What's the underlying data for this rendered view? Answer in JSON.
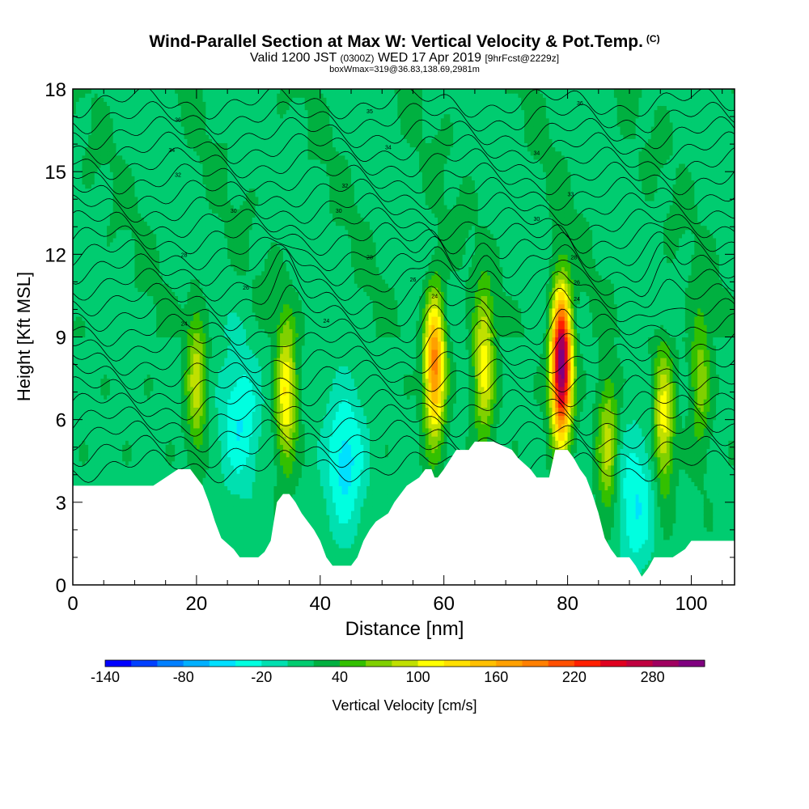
{
  "title": {
    "main": "Wind-Parallel Section at Max W: Vertical Velocity & Pot.Temp.",
    "main_suffix": "(C)",
    "valid_prefix": "Valid 1200 JST",
    "valid_z": "(0300Z)",
    "valid_date": "WED 17 Apr 2019",
    "fcst": "[9hrFcst@2229z]",
    "box": "boxWmax=319@36.83,138.69,2981m"
  },
  "chart_data": {
    "type": "heatmap",
    "xlabel": "Distance [nm]",
    "ylabel": "Height [Kft MSL]",
    "xlim": [
      0,
      107
    ],
    "ylim": [
      0,
      18
    ],
    "xticks": [
      0,
      20,
      40,
      60,
      80,
      100
    ],
    "yticks": [
      0,
      3,
      6,
      9,
      12,
      15,
      18
    ],
    "colorbar": {
      "label": "Vertical Velocity [cm/s]",
      "min": -140,
      "max": 320,
      "step": 20,
      "tick_labels": [
        -140,
        -80,
        -20,
        40,
        100,
        160,
        220,
        280
      ],
      "colors": [
        "#0000ff",
        "#0040ff",
        "#0080ff",
        "#00b0ff",
        "#00e0ff",
        "#00ffe0",
        "#00e0b0",
        "#00cc70",
        "#00b040",
        "#33c000",
        "#80d000",
        "#c0e000",
        "#ffff00",
        "#ffe000",
        "#ffc000",
        "#ffa000",
        "#ff8000",
        "#ff5000",
        "#ff2000",
        "#e00020",
        "#c00040",
        "#a00060",
        "#800080"
      ]
    },
    "terrain": [
      [
        0,
        3.6
      ],
      [
        13,
        3.6
      ],
      [
        15,
        3.9
      ],
      [
        17,
        4.2
      ],
      [
        19,
        4.2
      ],
      [
        20,
        3.9
      ],
      [
        21,
        3.6
      ],
      [
        22,
        3
      ],
      [
        23,
        2.3
      ],
      [
        24,
        1.7
      ],
      [
        26,
        1.3
      ],
      [
        27,
        1
      ],
      [
        30,
        1
      ],
      [
        31,
        1.2
      ],
      [
        32,
        1.6
      ],
      [
        33,
        3
      ],
      [
        34,
        3.3
      ],
      [
        35,
        3.3
      ],
      [
        36,
        3
      ],
      [
        37,
        2.6
      ],
      [
        38,
        2.3
      ],
      [
        39,
        2
      ],
      [
        40,
        1.6
      ],
      [
        41,
        1
      ],
      [
        42,
        0.7
      ],
      [
        45,
        0.7
      ],
      [
        46,
        1
      ],
      [
        47,
        1.6
      ],
      [
        48,
        2
      ],
      [
        49,
        2.3
      ],
      [
        51,
        2.6
      ],
      [
        52,
        3
      ],
      [
        54,
        3.6
      ],
      [
        56,
        3.9
      ],
      [
        57,
        4.2
      ],
      [
        58,
        4.2
      ],
      [
        58.5,
        3.9
      ],
      [
        59,
        3.9
      ],
      [
        60,
        4.2
      ],
      [
        62,
        4.9
      ],
      [
        64,
        4.9
      ],
      [
        65,
        5.2
      ],
      [
        68,
        5.2
      ],
      [
        71,
        4.9
      ],
      [
        72,
        4.6
      ],
      [
        74,
        4.2
      ],
      [
        75,
        3.9
      ],
      [
        77,
        3.9
      ],
      [
        78,
        4.9
      ],
      [
        80,
        4.9
      ],
      [
        81,
        4.6
      ],
      [
        82,
        4.2
      ],
      [
        83,
        3.9
      ],
      [
        84,
        3.3
      ],
      [
        85,
        2.6
      ],
      [
        86,
        1.7
      ],
      [
        87,
        1.3
      ],
      [
        88,
        1
      ],
      [
        90,
        1
      ],
      [
        91,
        0.7
      ],
      [
        92,
        0.3
      ],
      [
        93,
        0.6
      ],
      [
        94,
        1
      ],
      [
        97,
        1
      ],
      [
        99,
        1.3
      ],
      [
        100,
        1.6
      ],
      [
        107,
        1.6
      ]
    ],
    "updrafts": [
      {
        "x": 20,
        "y": 7.5,
        "peak": 90
      },
      {
        "x": 34.5,
        "y": 7,
        "peak": 120
      },
      {
        "x": 58.5,
        "y": 8,
        "peak": 190
      },
      {
        "x": 66.5,
        "y": 8,
        "peak": 110
      },
      {
        "x": 79,
        "y": 8,
        "peak": 320
      },
      {
        "x": 86.5,
        "y": 5,
        "peak": 90
      },
      {
        "x": 95.5,
        "y": 6,
        "peak": 110
      },
      {
        "x": 101.5,
        "y": 7.5,
        "peak": 70
      }
    ],
    "downdrafts": [
      {
        "x": 27,
        "y": 6,
        "peak": -40
      },
      {
        "x": 44,
        "y": 4.5,
        "peak": -50
      },
      {
        "x": 91,
        "y": 3,
        "peak": -40
      }
    ],
    "isentrope_labels": [
      {
        "x": 17,
        "y": 16.9,
        "text": "36"
      },
      {
        "x": 48,
        "y": 17.2,
        "text": "35"
      },
      {
        "x": 82,
        "y": 17.5,
        "text": "36"
      },
      {
        "x": 16,
        "y": 15.8,
        "text": "34"
      },
      {
        "x": 51,
        "y": 15.9,
        "text": "34"
      },
      {
        "x": 75,
        "y": 15.7,
        "text": "34"
      },
      {
        "x": 17,
        "y": 14.9,
        "text": "32"
      },
      {
        "x": 44,
        "y": 14.5,
        "text": "32"
      },
      {
        "x": 80.5,
        "y": 14.2,
        "text": "33"
      },
      {
        "x": 26,
        "y": 13.6,
        "text": "30"
      },
      {
        "x": 43,
        "y": 13.6,
        "text": "30"
      },
      {
        "x": 75,
        "y": 13.3,
        "text": "30"
      },
      {
        "x": 18,
        "y": 12,
        "text": "28"
      },
      {
        "x": 48,
        "y": 11.9,
        "text": "28"
      },
      {
        "x": 81,
        "y": 11.9,
        "text": "28"
      },
      {
        "x": 28,
        "y": 10.8,
        "text": "26"
      },
      {
        "x": 55,
        "y": 11.1,
        "text": "26"
      },
      {
        "x": 81.5,
        "y": 11,
        "text": "26"
      },
      {
        "x": 18,
        "y": 9.5,
        "text": "24"
      },
      {
        "x": 41,
        "y": 9.6,
        "text": "24"
      },
      {
        "x": 58.5,
        "y": 10.5,
        "text": "24"
      },
      {
        "x": 81.5,
        "y": 10.4,
        "text": "24"
      }
    ]
  }
}
